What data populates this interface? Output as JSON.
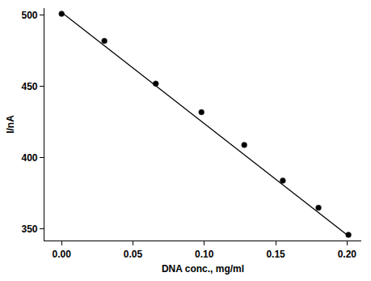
{
  "chart_data": {
    "type": "scatter",
    "x_label": "DNA conc., mg/ml",
    "y_label": "I/nA",
    "series": [
      {
        "type": "scatter",
        "marker": "circle",
        "color": "#000000",
        "x": [
          0,
          0.03,
          0.066,
          0.098,
          0.128,
          0.155,
          0.18,
          0.201
        ],
        "values": [
          501,
          482,
          452,
          432,
          409,
          384,
          365,
          346
        ]
      },
      {
        "type": "line",
        "line_style": "solid",
        "color": "#000000",
        "x": [
          0,
          0.2
        ],
        "values": [
          502,
          346
        ]
      }
    ],
    "xlim": [
      -0.012,
      0.21
    ],
    "ylim": [
      342,
      505
    ],
    "xticks": [
      {
        "value": 0,
        "label": "0.00"
      },
      {
        "value": 0.05,
        "label": "0.05"
      },
      {
        "value": 0.1,
        "label": "0.10"
      },
      {
        "value": 0.15,
        "label": "0.15"
      },
      {
        "value": 0.2,
        "label": "0.20"
      }
    ],
    "yticks": [
      350,
      400,
      450,
      500
    ],
    "grid": false
  }
}
